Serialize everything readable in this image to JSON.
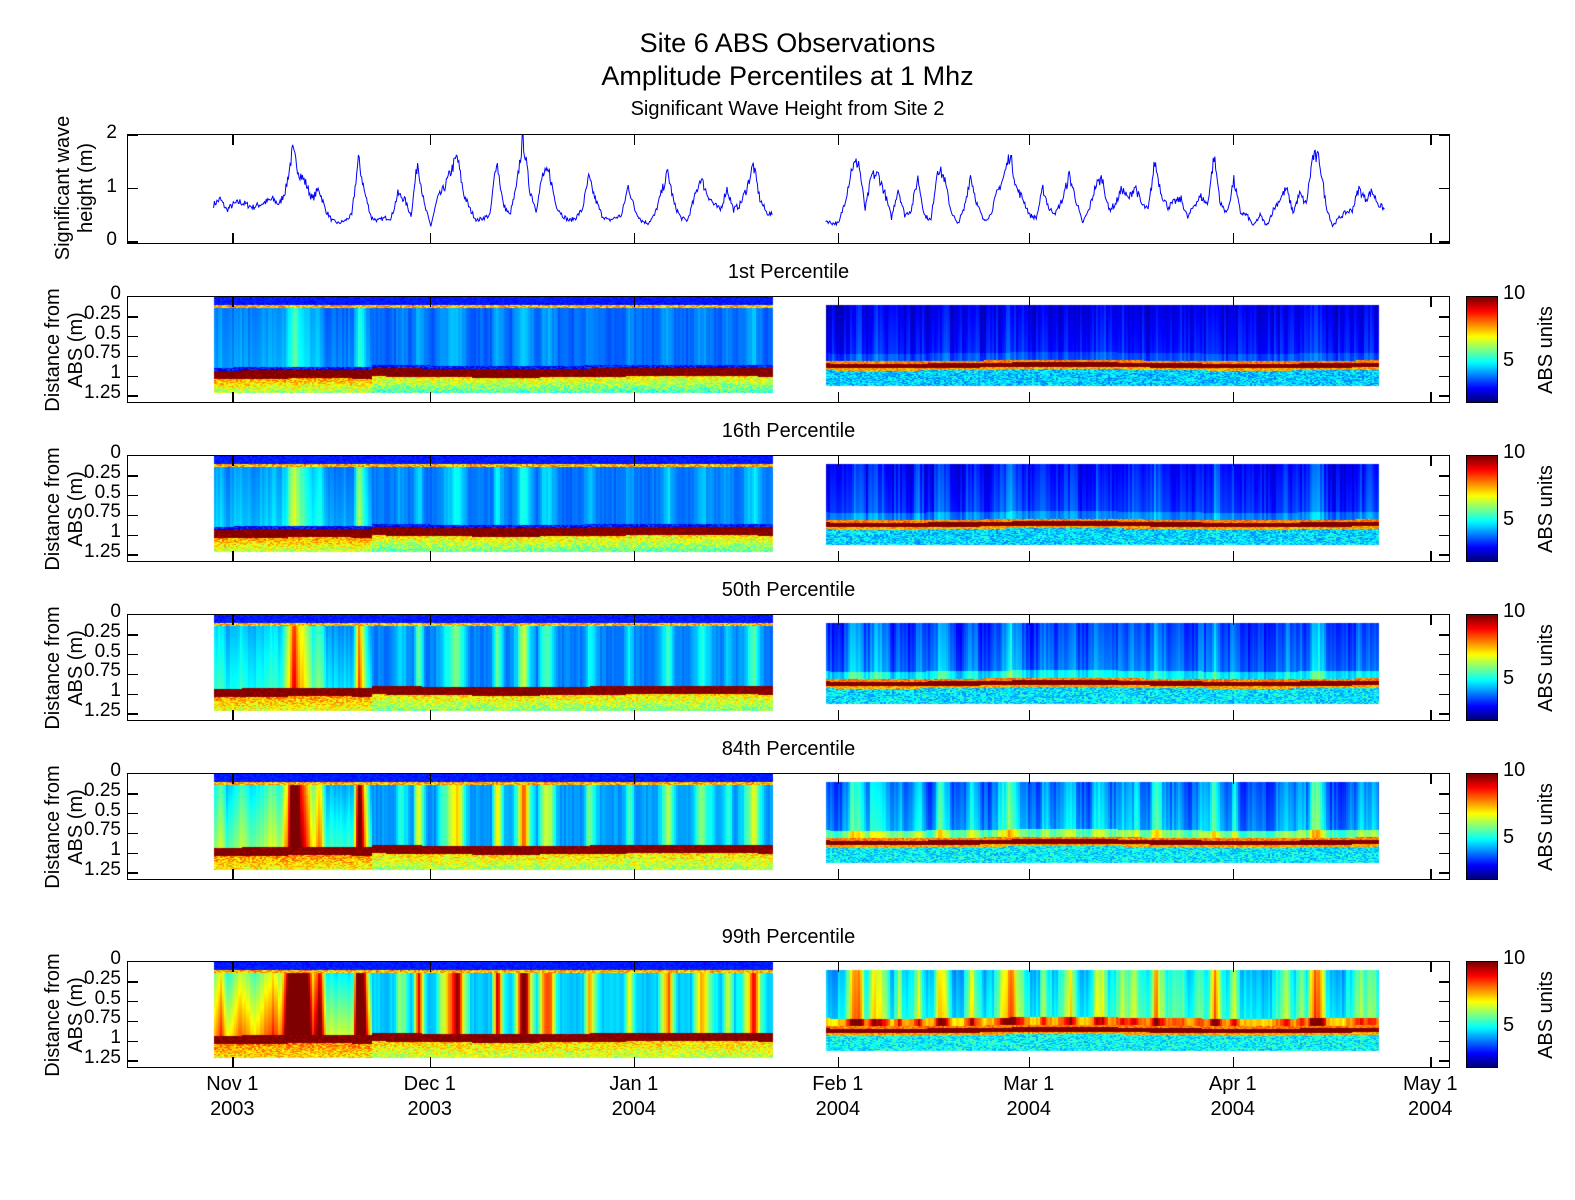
{
  "title": {
    "line1": "Site 6 ABS Observations",
    "line2": "Amplitude Percentiles at 1 Mhz",
    "subtitle": "Significant Wave Height from Site 2"
  },
  "chart_data": [
    {
      "type": "line",
      "title": "Significant Wave Height from Site 2",
      "ylabel": [
        "Significant wave",
        "height (m)"
      ],
      "ylim": [
        0,
        2
      ],
      "yticks": [
        "0",
        "1",
        "2"
      ],
      "xlim": [
        "2003-10-16",
        "2004-05-04"
      ],
      "color": "#0000ff",
      "series": [
        {
          "name": "segment-1",
          "start": "2003-10-29",
          "step_days": 1,
          "values": [
            0.7,
            0.8,
            0.6,
            0.7,
            0.75,
            0.7,
            0.65,
            0.7,
            0.75,
            0.8,
            0.7,
            1.0,
            1.7,
            1.3,
            1.1,
            0.8,
            1.0,
            0.6,
            0.4,
            0.35,
            0.4,
            0.5,
            1.55,
            0.9,
            0.45,
            0.4,
            0.45,
            0.45,
            0.9,
            0.8,
            0.5,
            1.5,
            0.7,
            0.3,
            0.8,
            1.0,
            1.3,
            1.6,
            0.9,
            0.6,
            0.4,
            0.45,
            0.5,
            1.55,
            0.7,
            0.5,
            1.0,
            1.95,
            1.0,
            0.6,
            1.25,
            1.3,
            0.7,
            0.5,
            0.4,
            0.45,
            0.6,
            1.2,
            0.8,
            0.5,
            0.4,
            0.45,
            0.5,
            1.05,
            0.6,
            0.4,
            0.35,
            0.5,
            0.9,
            1.3,
            0.7,
            0.45,
            0.4,
            0.8,
            1.2,
            0.9,
            0.7,
            0.6,
            1.0,
            0.6,
            0.7,
            1.0,
            1.45,
            0.8,
            0.55,
            0.5
          ]
        },
        {
          "name": "segment-2",
          "start": "2004-01-30",
          "step_days": 1,
          "values": [
            0.4,
            0.35,
            0.35,
            0.8,
            1.4,
            1.5,
            0.6,
            1.25,
            1.25,
            0.9,
            0.45,
            1.0,
            0.5,
            0.6,
            1.2,
            0.5,
            0.4,
            1.4,
            1.2,
            0.6,
            0.33,
            0.6,
            1.25,
            0.7,
            0.4,
            0.5,
            0.9,
            1.2,
            1.65,
            1.0,
            0.8,
            0.5,
            0.45,
            1.0,
            0.6,
            0.55,
            0.8,
            1.25,
            0.8,
            0.35,
            0.6,
            1.05,
            1.2,
            0.6,
            0.7,
            1.0,
            0.8,
            1.05,
            0.7,
            0.6,
            1.5,
            0.9,
            0.65,
            0.75,
            0.8,
            0.45,
            0.7,
            0.85,
            0.7,
            1.6,
            0.7,
            0.55,
            1.15,
            0.55,
            0.5,
            0.3,
            0.5,
            0.3,
            0.6,
            0.8,
            1.0,
            0.55,
            0.9,
            0.7,
            1.6,
            1.55,
            0.7,
            0.3,
            0.45,
            0.55,
            0.6,
            1.0,
            0.8,
            0.95,
            0.7,
            0.6
          ]
        }
      ]
    }
  ],
  "heatmaps": {
    "type": "heatmap",
    "ylabel": [
      "Distance from",
      "ABS (m)"
    ],
    "ylim": [
      0,
      1.35
    ],
    "yticks": [
      "0",
      "0.25",
      "0.5",
      "0.75",
      "1",
      "1.25"
    ],
    "ytick_values": [
      0,
      0.25,
      0.5,
      0.75,
      1,
      1.25
    ],
    "colormap": "jet",
    "clim": [
      2,
      10
    ],
    "colorbar": {
      "label": "ABS units",
      "ticks": [
        "5",
        "10"
      ],
      "tick_values": [
        5,
        10
      ]
    },
    "segments": [
      {
        "start": "2003-10-29",
        "end": "2004-01-22",
        "depth_range": [
          0,
          1.25
        ],
        "bed_distance": 1.0
      },
      {
        "start": "2004-01-30",
        "end": "2004-04-23",
        "depth_range": [
          0.1,
          1.16
        ],
        "bed_distance": 0.87
      }
    ],
    "panels": [
      {
        "title": "1st Percentile",
        "level": 1
      },
      {
        "title": "16th Percentile",
        "level": 16
      },
      {
        "title": "50th Percentile",
        "level": 50
      },
      {
        "title": "84th Percentile",
        "level": 84
      },
      {
        "title": "99th Percentile",
        "level": 99
      }
    ]
  },
  "xaxis": {
    "ticks": [
      {
        "date": "2003-11-01",
        "month": "Nov 1",
        "year": "2003"
      },
      {
        "date": "2003-12-01",
        "month": "Dec 1",
        "year": "2003"
      },
      {
        "date": "2004-01-01",
        "month": "Jan 1",
        "year": "2004"
      },
      {
        "date": "2004-02-01",
        "month": "Feb 1",
        "year": "2004"
      },
      {
        "date": "2004-03-01",
        "month": "Mar 1",
        "year": "2004"
      },
      {
        "date": "2004-04-01",
        "month": "Apr 1",
        "year": "2004"
      },
      {
        "date": "2004-05-01",
        "month": "May 1",
        "year": "2004"
      }
    ]
  }
}
